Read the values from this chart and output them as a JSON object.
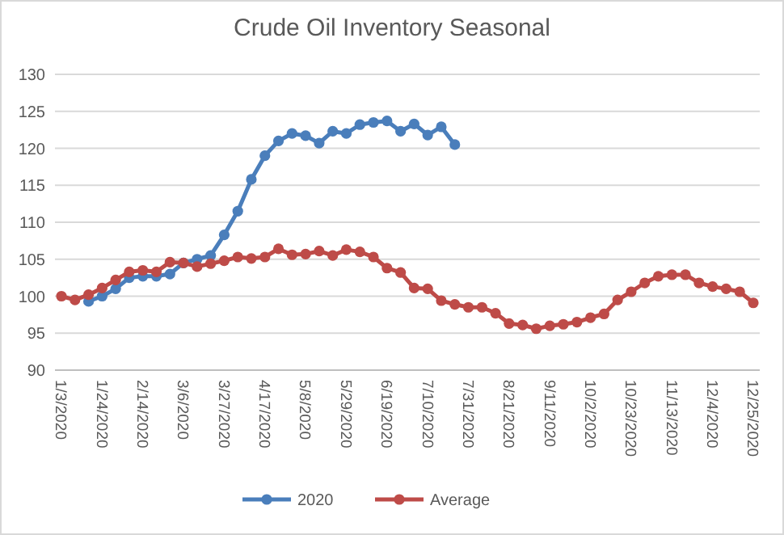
{
  "chart_data": {
    "type": "line",
    "title": "Crude Oil Inventory Seasonal",
    "categories": [
      "1/3/2020",
      null,
      null,
      "1/24/2020",
      null,
      null,
      "2/14/2020",
      null,
      null,
      "3/6/2020",
      null,
      null,
      "3/27/2020",
      null,
      null,
      "4/17/2020",
      null,
      null,
      "5/8/2020",
      null,
      null,
      "5/29/2020",
      null,
      null,
      "6/19/2020",
      null,
      null,
      "7/10/2020",
      null,
      null,
      "7/31/2020",
      null,
      null,
      "8/21/2020",
      null,
      null,
      "9/11/2020",
      null,
      null,
      "10/2/2020",
      null,
      null,
      "10/23/2020",
      null,
      null,
      "11/13/2020",
      null,
      null,
      "12/4/2020",
      null,
      null,
      "12/25/2020"
    ],
    "series": [
      {
        "name": "2020",
        "color": "#4a7ebb",
        "values": [
          null,
          null,
          99.3,
          100,
          101,
          102.5,
          102.7,
          102.7,
          103,
          104.5,
          105,
          105.5,
          108.3,
          111.5,
          115.8,
          119,
          121,
          122,
          121.7,
          120.7,
          122.3,
          122,
          123.2,
          123.5,
          123.7,
          122.3,
          123.3,
          121.8,
          122.9,
          120.5,
          null,
          null,
          null,
          null,
          null,
          null,
          null,
          null,
          null,
          null,
          null,
          null,
          null,
          null,
          null,
          null,
          null,
          null,
          null,
          null,
          null,
          null
        ]
      },
      {
        "name": "Average",
        "color": "#be4b48",
        "values": [
          100,
          99.5,
          100.2,
          101.1,
          102.2,
          103.3,
          103.5,
          103.3,
          104.6,
          104.5,
          104,
          104.4,
          104.8,
          105.3,
          105.1,
          105.3,
          106.4,
          105.6,
          105.7,
          106.1,
          105.5,
          106.3,
          106,
          105.3,
          103.8,
          103.2,
          101.1,
          101,
          99.4,
          98.9,
          98.5,
          98.5,
          97.7,
          96.3,
          96.1,
          95.6,
          96,
          96.2,
          96.5,
          97.1,
          97.6,
          99.5,
          100.6,
          101.8,
          102.7,
          102.9,
          102.9,
          101.8,
          101.3,
          101,
          100.6,
          99.1
        ]
      }
    ],
    "ylim": [
      90,
      130
    ],
    "yticks": [
      90,
      95,
      100,
      105,
      110,
      115,
      120,
      125,
      130
    ],
    "grid": "y",
    "legend": "bottom",
    "marker": "circle",
    "line_style": "solid"
  }
}
